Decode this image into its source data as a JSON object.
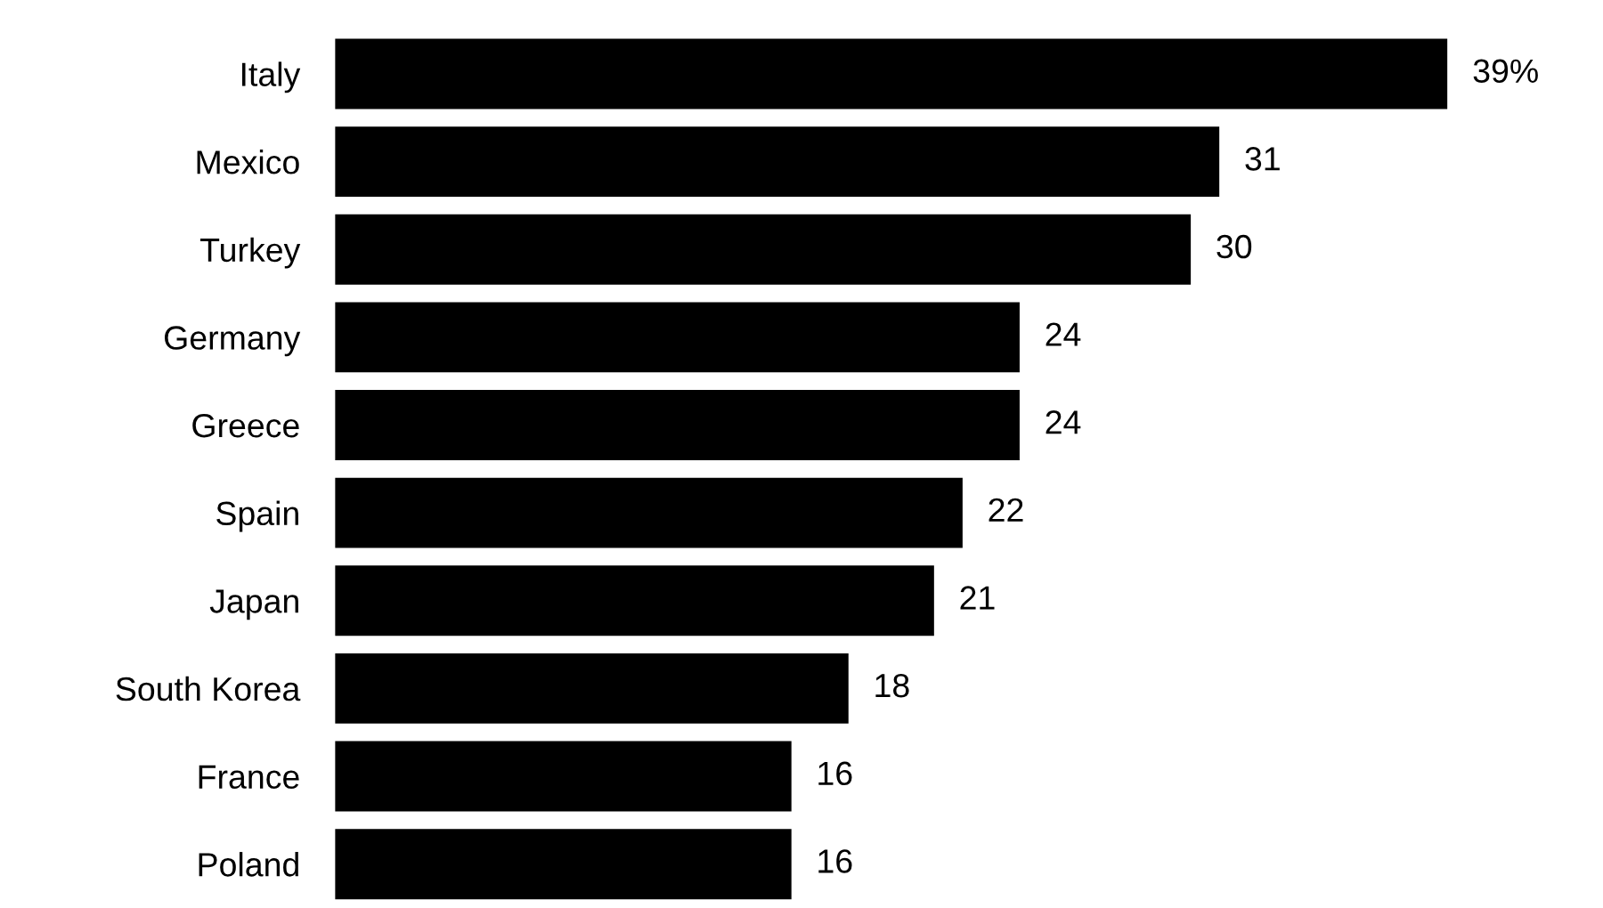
{
  "chart_data": {
    "type": "bar",
    "orientation": "horizontal",
    "categories": [
      "Italy",
      "Mexico",
      "Turkey",
      "Germany",
      "Greece",
      "Spain",
      "Japan",
      "South Korea",
      "France",
      "Poland"
    ],
    "values": [
      39,
      31,
      30,
      24,
      24,
      22,
      21,
      18,
      16,
      16
    ],
    "value_labels": [
      "39%",
      "31",
      "30",
      "24",
      "24",
      "22",
      "21",
      "18",
      "16",
      "16"
    ],
    "color": "#000000",
    "grid": false,
    "legend": false
  }
}
